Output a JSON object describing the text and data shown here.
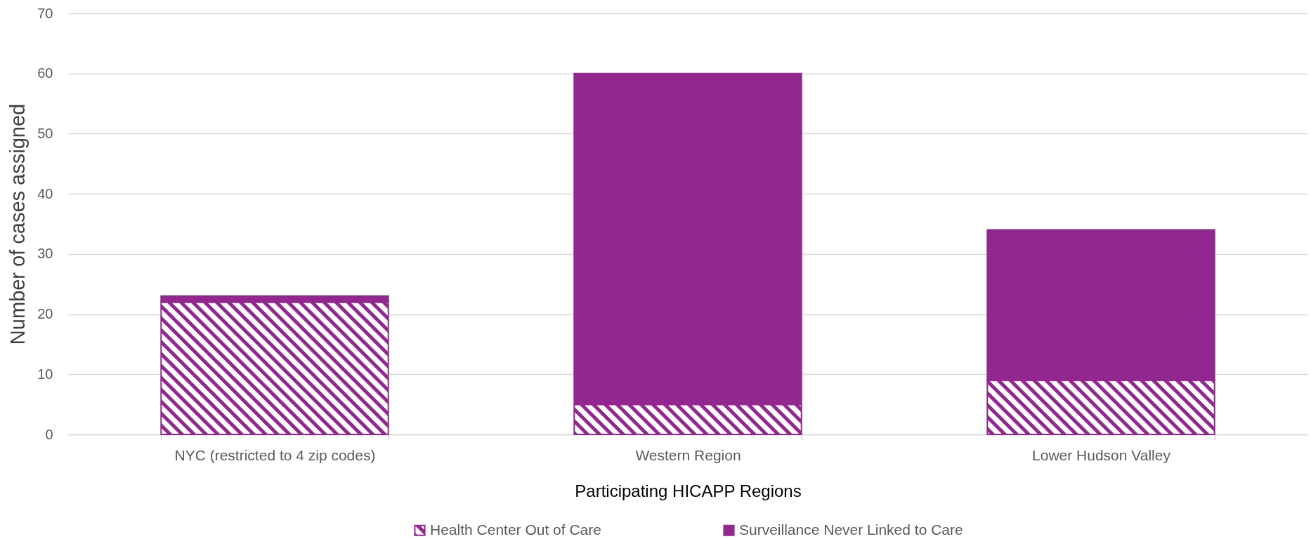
{
  "chart_data": {
    "type": "bar",
    "xlabel": "Participating HICAPP Regions",
    "ylabel": "Number of cases assigned",
    "categories": [
      "NYC (restricted to 4 zip codes)",
      "Western Region",
      "Lower Hudson Valley"
    ],
    "series": [
      {
        "name": "Health Center Out of Care",
        "color": "#92278f",
        "values": [
          22,
          5,
          9
        ]
      },
      {
        "name": "Surveillance Never Linked to Care",
        "color": "#92278f",
        "values": [
          1,
          55,
          25
        ]
      }
    ],
    "stacked": true,
    "ylim": [
      0,
      70
    ],
    "yticks": [
      0,
      10,
      20,
      30,
      40,
      50,
      60,
      70
    ],
    "grid": "y",
    "legend": "bottom"
  }
}
